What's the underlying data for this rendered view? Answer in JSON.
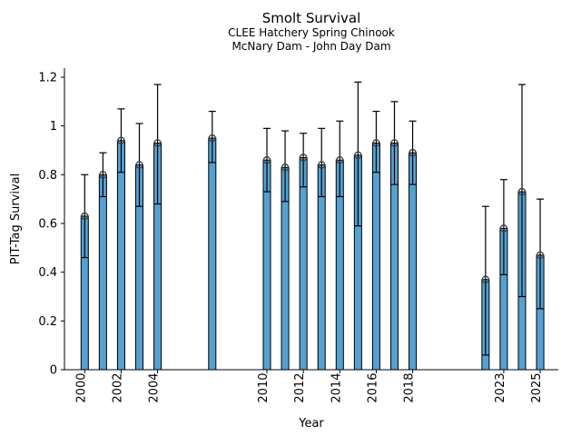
{
  "chart_data": {
    "type": "bar",
    "title": "Smolt Survival",
    "subtitle_line1": "CLEE Hatchery Spring Chinook",
    "subtitle_line2": "McNary Dam - John Day Dam",
    "xlabel": "Year",
    "ylabel": "PIT-Tag Survival",
    "x": [
      2000,
      2001,
      2002,
      2003,
      2004,
      2007,
      2010,
      2011,
      2012,
      2013,
      2014,
      2015,
      2016,
      2017,
      2018,
      2022,
      2023,
      2024,
      2025
    ],
    "values": [
      0.63,
      0.8,
      0.94,
      0.84,
      0.93,
      0.95,
      0.86,
      0.83,
      0.87,
      0.84,
      0.86,
      0.88,
      0.93,
      0.93,
      0.89,
      0.37,
      0.58,
      0.73,
      0.47
    ],
    "err_low": [
      0.46,
      0.71,
      0.81,
      0.67,
      0.68,
      0.85,
      0.73,
      0.69,
      0.75,
      0.71,
      0.71,
      0.59,
      0.81,
      0.76,
      0.76,
      0.06,
      0.39,
      0.3,
      0.25
    ],
    "err_high": [
      0.8,
      0.89,
      1.07,
      1.01,
      1.17,
      1.06,
      0.99,
      0.98,
      0.97,
      0.99,
      1.02,
      1.18,
      1.06,
      1.1,
      1.02,
      0.67,
      0.78,
      1.17,
      0.7
    ],
    "xtick_labels": [
      "2000",
      "2002",
      "2004",
      "2010",
      "2012",
      "2014",
      "2016",
      "2018",
      "2023",
      "2025"
    ],
    "xticks": [
      2000,
      2002,
      2004,
      2010,
      2012,
      2014,
      2016,
      2018,
      2023,
      2025
    ],
    "ytick_labels": [
      "0",
      "0.2",
      "0.4",
      "0.6",
      "0.8",
      "1",
      "1.2"
    ],
    "yticks": [
      0,
      0.2,
      0.4,
      0.6,
      0.8,
      1.0,
      1.2
    ],
    "xlim": [
      1998.9,
      2026.1
    ],
    "ylim": [
      0,
      1.2375
    ],
    "xtick_rotation_deg": 90,
    "grid": false,
    "legend": "none",
    "bar_width_years": 0.4,
    "marker": "open-circle",
    "bar_fill_color": "#55a1d2",
    "bar_edge_color": "#000000",
    "errorbar_color": "#000000",
    "marker_edge_color": "#3a3a3a",
    "axis_color": "#000000",
    "background_color": "#ffffff"
  }
}
